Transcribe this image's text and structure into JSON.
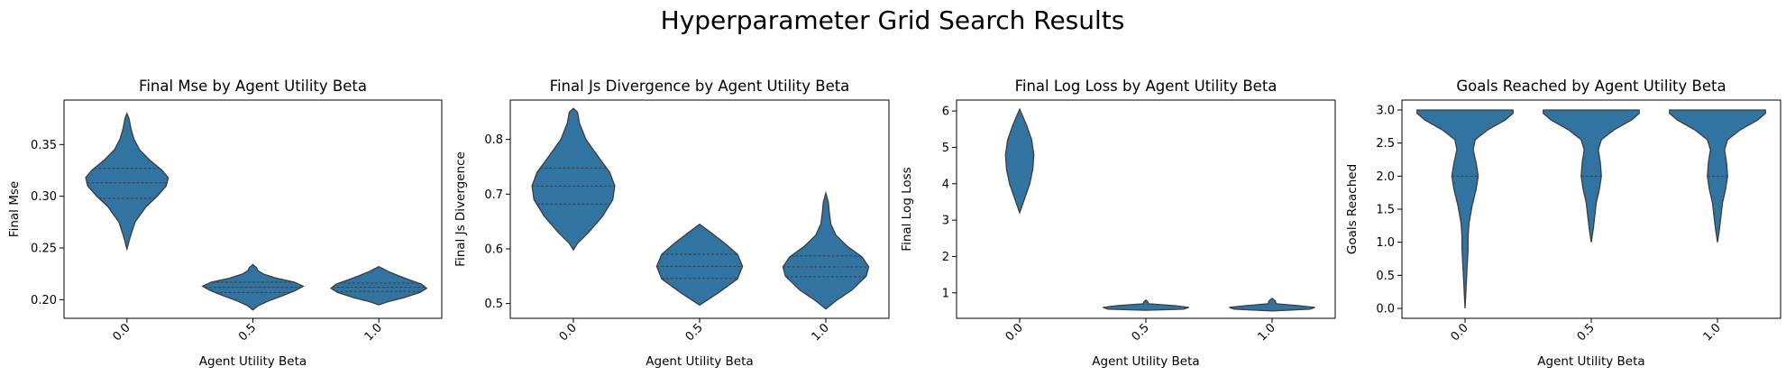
{
  "figure": {
    "title": "Hyperparameter Grid Search Results",
    "violin_color": "#3274a1",
    "edge_color": "#3d3d3d"
  },
  "chart_data": [
    {
      "type": "violin",
      "title": "Final Mse by Agent Utility Beta",
      "xlabel": "Agent Utility Beta",
      "ylabel": "Final Mse",
      "categories": [
        "0.0",
        "0.5",
        "1.0"
      ],
      "ylim": [
        0.182,
        0.393
      ],
      "yticks": [
        0.2,
        0.25,
        0.3,
        0.35
      ],
      "ytick_labels": [
        "0.20",
        "0.25",
        "0.30",
        "0.35"
      ],
      "violins": [
        {
          "category": "0.0",
          "min": 0.249,
          "max": 0.38,
          "quartiles": [
            0.298,
            0.313,
            0.327
          ],
          "profile": [
            [
              0.249,
              0.0
            ],
            [
              0.26,
              0.06
            ],
            [
              0.275,
              0.16
            ],
            [
              0.29,
              0.38
            ],
            [
              0.3,
              0.6
            ],
            [
              0.31,
              0.78
            ],
            [
              0.318,
              0.82
            ],
            [
              0.325,
              0.7
            ],
            [
              0.335,
              0.45
            ],
            [
              0.345,
              0.25
            ],
            [
              0.355,
              0.14
            ],
            [
              0.365,
              0.08
            ],
            [
              0.375,
              0.04
            ],
            [
              0.38,
              0.0
            ]
          ]
        },
        {
          "category": "0.5",
          "min": 0.19,
          "max": 0.234,
          "quartiles": [
            0.207,
            0.212,
            0.217
          ],
          "profile": [
            [
              0.19,
              0.0
            ],
            [
              0.194,
              0.1
            ],
            [
              0.199,
              0.32
            ],
            [
              0.204,
              0.6
            ],
            [
              0.209,
              0.85
            ],
            [
              0.213,
              1.0
            ],
            [
              0.217,
              0.82
            ],
            [
              0.221,
              0.45
            ],
            [
              0.225,
              0.2
            ],
            [
              0.228,
              0.1
            ],
            [
              0.231,
              0.07
            ],
            [
              0.234,
              0.0
            ]
          ]
        },
        {
          "category": "1.0",
          "min": 0.195,
          "max": 0.232,
          "quartiles": [
            0.208,
            0.212,
            0.216
          ],
          "profile": [
            [
              0.195,
              0.0
            ],
            [
              0.198,
              0.18
            ],
            [
              0.202,
              0.5
            ],
            [
              0.207,
              0.82
            ],
            [
              0.211,
              0.95
            ],
            [
              0.215,
              0.85
            ],
            [
              0.219,
              0.62
            ],
            [
              0.223,
              0.4
            ],
            [
              0.227,
              0.2
            ],
            [
              0.23,
              0.08
            ],
            [
              0.232,
              0.0
            ]
          ]
        }
      ]
    },
    {
      "type": "violin",
      "title": "Final Js Divergence by Agent Utility Beta",
      "xlabel": "Agent Utility Beta",
      "ylabel": "Final Js Divergence",
      "categories": [
        "0.0",
        "0.5",
        "1.0"
      ],
      "ylim": [
        0.473,
        0.872
      ],
      "yticks": [
        0.5,
        0.6,
        0.7,
        0.8
      ],
      "ytick_labels": [
        "0.5",
        "0.6",
        "0.7",
        "0.8"
      ],
      "violins": [
        {
          "category": "0.0",
          "min": 0.598,
          "max": 0.857,
          "quartiles": [
            0.682,
            0.715,
            0.748
          ],
          "profile": [
            [
              0.598,
              0.0
            ],
            [
              0.61,
              0.08
            ],
            [
              0.63,
              0.3
            ],
            [
              0.66,
              0.58
            ],
            [
              0.69,
              0.78
            ],
            [
              0.715,
              0.82
            ],
            [
              0.74,
              0.72
            ],
            [
              0.77,
              0.48
            ],
            [
              0.8,
              0.25
            ],
            [
              0.83,
              0.12
            ],
            [
              0.85,
              0.08
            ],
            [
              0.857,
              0.0
            ]
          ]
        },
        {
          "category": "0.5",
          "min": 0.497,
          "max": 0.645,
          "quartiles": [
            0.546,
            0.568,
            0.59
          ],
          "profile": [
            [
              0.497,
              0.0
            ],
            [
              0.5,
              0.05
            ],
            [
              0.52,
              0.38
            ],
            [
              0.545,
              0.75
            ],
            [
              0.568,
              0.85
            ],
            [
              0.59,
              0.75
            ],
            [
              0.61,
              0.5
            ],
            [
              0.63,
              0.22
            ],
            [
              0.645,
              0.0
            ]
          ]
        },
        {
          "category": "1.0",
          "min": 0.49,
          "max": 0.702,
          "quartiles": [
            0.549,
            0.567,
            0.587
          ],
          "profile": [
            [
              0.49,
              0.0
            ],
            [
              0.505,
              0.2
            ],
            [
              0.525,
              0.52
            ],
            [
              0.55,
              0.8
            ],
            [
              0.567,
              0.85
            ],
            [
              0.585,
              0.72
            ],
            [
              0.605,
              0.42
            ],
            [
              0.625,
              0.2
            ],
            [
              0.645,
              0.1
            ],
            [
              0.665,
              0.07
            ],
            [
              0.685,
              0.05
            ],
            [
              0.702,
              0.0
            ]
          ]
        }
      ]
    },
    {
      "type": "violin",
      "title": "Final Log Loss by Agent Utility Beta",
      "xlabel": "Agent Utility Beta",
      "ylabel": "Final Log Loss",
      "categories": [
        "0.0",
        "0.5",
        "1.0"
      ],
      "ylim": [
        0.3,
        6.3
      ],
      "yticks": [
        1,
        2,
        3,
        4,
        5,
        6
      ],
      "ytick_labels": [
        "1",
        "2",
        "3",
        "4",
        "5",
        "6"
      ],
      "violins": [
        {
          "category": "0.0",
          "min": 3.2,
          "max": 6.05,
          "quartiles": [],
          "profile": [
            [
              3.2,
              0.0
            ],
            [
              3.6,
              0.1
            ],
            [
              4.0,
              0.2
            ],
            [
              4.4,
              0.26
            ],
            [
              4.8,
              0.28
            ],
            [
              5.2,
              0.24
            ],
            [
              5.6,
              0.14
            ],
            [
              6.05,
              0.0
            ]
          ]
        },
        {
          "category": "0.5",
          "min": 0.52,
          "max": 0.8,
          "quartiles": [],
          "profile": [
            [
              0.52,
              0.0
            ],
            [
              0.55,
              0.75
            ],
            [
              0.6,
              0.85
            ],
            [
              0.65,
              0.55
            ],
            [
              0.7,
              0.05
            ],
            [
              0.75,
              0.04
            ],
            [
              0.8,
              0.0
            ]
          ]
        },
        {
          "category": "1.0",
          "min": 0.5,
          "max": 0.85,
          "quartiles": [],
          "profile": [
            [
              0.5,
              0.0
            ],
            [
              0.55,
              0.75
            ],
            [
              0.6,
              0.85
            ],
            [
              0.65,
              0.5
            ],
            [
              0.7,
              0.08
            ],
            [
              0.78,
              0.06
            ],
            [
              0.85,
              0.0
            ]
          ]
        }
      ]
    },
    {
      "type": "violin",
      "title": "Goals Reached by Agent Utility Beta",
      "xlabel": "Agent Utility Beta",
      "ylabel": "Goals Reached",
      "categories": [
        "0.0",
        "0.5",
        "1.0"
      ],
      "ylim": [
        -0.15,
        3.15
      ],
      "yticks": [
        0.0,
        0.5,
        1.0,
        1.5,
        2.0,
        2.5,
        3.0
      ],
      "ytick_labels": [
        "0.0",
        "0.5",
        "1.0",
        "1.5",
        "2.0",
        "2.5",
        "3.0"
      ],
      "violins": [
        {
          "category": "0.0",
          "min": 0.0,
          "max": 3.0,
          "quartiles": [
            2.0,
            3.0,
            3.0
          ],
          "profile": [
            [
              0.0,
              0.0
            ],
            [
              0.3,
              0.02
            ],
            [
              0.6,
              0.04
            ],
            [
              0.9,
              0.06
            ],
            [
              1.1,
              0.06
            ],
            [
              1.3,
              0.08
            ],
            [
              1.55,
              0.14
            ],
            [
              1.8,
              0.22
            ],
            [
              2.0,
              0.26
            ],
            [
              2.2,
              0.22
            ],
            [
              2.4,
              0.16
            ],
            [
              2.55,
              0.2
            ],
            [
              2.7,
              0.45
            ],
            [
              2.85,
              0.8
            ],
            [
              2.95,
              0.95
            ],
            [
              3.0,
              0.95
            ]
          ]
        },
        {
          "category": "0.5",
          "min": 1.0,
          "max": 3.0,
          "quartiles": [
            2.0,
            3.0,
            3.0
          ],
          "profile": [
            [
              1.0,
              0.0
            ],
            [
              1.2,
              0.04
            ],
            [
              1.4,
              0.07
            ],
            [
              1.6,
              0.1
            ],
            [
              1.8,
              0.16
            ],
            [
              2.0,
              0.2
            ],
            [
              2.2,
              0.18
            ],
            [
              2.4,
              0.14
            ],
            [
              2.55,
              0.2
            ],
            [
              2.7,
              0.45
            ],
            [
              2.85,
              0.8
            ],
            [
              2.95,
              0.95
            ],
            [
              3.0,
              0.95
            ]
          ]
        },
        {
          "category": "1.0",
          "min": 1.0,
          "max": 3.0,
          "quartiles": [
            2.0,
            3.0,
            3.0
          ],
          "profile": [
            [
              1.0,
              0.0
            ],
            [
              1.2,
              0.04
            ],
            [
              1.4,
              0.07
            ],
            [
              1.6,
              0.1
            ],
            [
              1.8,
              0.16
            ],
            [
              2.0,
              0.2
            ],
            [
              2.2,
              0.18
            ],
            [
              2.4,
              0.14
            ],
            [
              2.55,
              0.2
            ],
            [
              2.7,
              0.45
            ],
            [
              2.85,
              0.8
            ],
            [
              2.95,
              0.95
            ],
            [
              3.0,
              0.95
            ]
          ]
        }
      ]
    }
  ]
}
